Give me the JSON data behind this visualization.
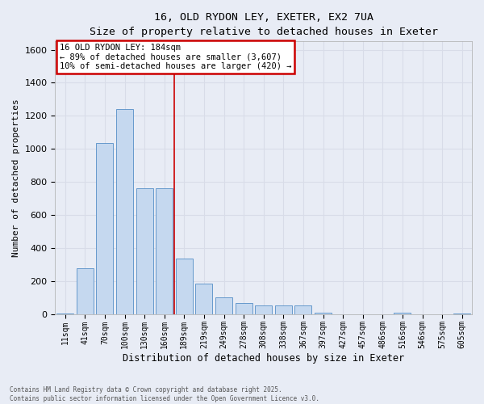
{
  "title_line1": "16, OLD RYDON LEY, EXETER, EX2 7UA",
  "title_line2": "Size of property relative to detached houses in Exeter",
  "xlabel": "Distribution of detached houses by size in Exeter",
  "ylabel": "Number of detached properties",
  "background_color": "#e8ecf5",
  "bar_color": "#c5d8ef",
  "bar_edge_color": "#6699cc",
  "grid_color": "#d8dce8",
  "categories": [
    "11sqm",
    "41sqm",
    "70sqm",
    "100sqm",
    "130sqm",
    "160sqm",
    "189sqm",
    "219sqm",
    "249sqm",
    "278sqm",
    "308sqm",
    "338sqm",
    "367sqm",
    "397sqm",
    "427sqm",
    "457sqm",
    "486sqm",
    "516sqm",
    "546sqm",
    "575sqm",
    "605sqm"
  ],
  "values": [
    2,
    275,
    1035,
    1240,
    760,
    760,
    335,
    185,
    100,
    68,
    53,
    50,
    50,
    8,
    0,
    0,
    0,
    7,
    0,
    0,
    2
  ],
  "ylim": [
    0,
    1650
  ],
  "yticks": [
    0,
    200,
    400,
    600,
    800,
    1000,
    1200,
    1400,
    1600
  ],
  "annotation_line1": "16 OLD RYDON LEY: 184sqm",
  "annotation_line2": "← 89% of detached houses are smaller (3,607)",
  "annotation_line3": "10% of semi-detached houses are larger (420) →",
  "vline_x": 5.5,
  "vline_color": "#cc0000",
  "annotation_box_edge": "#cc0000",
  "footer_line1": "Contains HM Land Registry data © Crown copyright and database right 2025.",
  "footer_line2": "Contains public sector information licensed under the Open Government Licence v3.0."
}
